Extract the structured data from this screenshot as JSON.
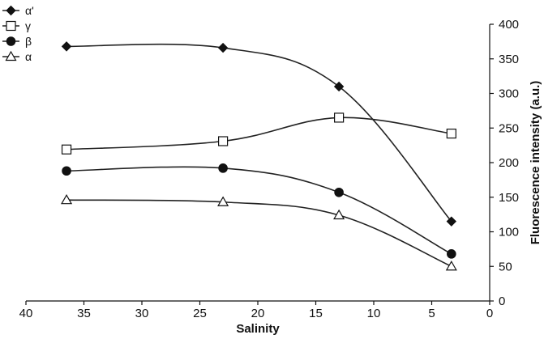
{
  "chart_data": {
    "type": "line",
    "title": "",
    "xlabel": "Salinity",
    "ylabel": "Fluorescence intensity (a.u.)",
    "x": [
      36.5,
      23,
      13,
      3.3
    ],
    "xlim": [
      40,
      0
    ],
    "x_reversed": true,
    "xticks": [
      40,
      35,
      30,
      25,
      20,
      15,
      10,
      5,
      0
    ],
    "ylim": [
      0,
      400
    ],
    "yticks": [
      0,
      50,
      100,
      150,
      200,
      250,
      300,
      350,
      400
    ],
    "y_axis_side": "right",
    "grid": false,
    "smooth_lines": true,
    "legend_position": "top-left",
    "series": [
      {
        "name": "α'",
        "marker": "filled-diamond",
        "values": [
          368,
          366,
          310,
          115
        ]
      },
      {
        "name": "γ",
        "marker": "open-square",
        "values": [
          219,
          231,
          265,
          242
        ]
      },
      {
        "name": "β",
        "marker": "filled-circle",
        "values": [
          188,
          192,
          157,
          68
        ]
      },
      {
        "name": "α",
        "marker": "open-triangle",
        "values": [
          146,
          143,
          124,
          50
        ]
      }
    ]
  }
}
